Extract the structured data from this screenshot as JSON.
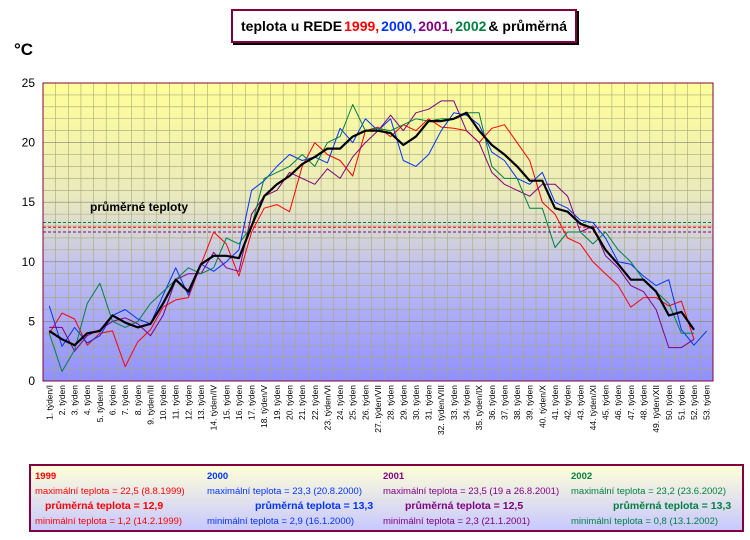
{
  "title": {
    "prefix": "teplota u REDE",
    "y1999": "1999,",
    "y2000": "2000,",
    "y2001": "2001,",
    "y2002": "2002",
    "suffix": "& průměrná"
  },
  "colors": {
    "y1999": "#ff0000",
    "y2000": "#0033ff",
    "y2001": "#800080",
    "y2002": "#008040",
    "average": "#000000",
    "border": "#800040"
  },
  "chart_data": {
    "type": "line",
    "title": "teplota u REDE 1999, 2000, 2001, 2002 & průměrná",
    "ylabel": "°C",
    "ylim": [
      0,
      25
    ],
    "yticks": [
      0,
      5,
      10,
      15,
      20,
      25
    ],
    "grid": true,
    "x": [
      "1. týden/I",
      "2. týden",
      "3. týden",
      "4. týden",
      "5. týden/II",
      "6. týden",
      "7. týden",
      "8. týden",
      "9. týden/III",
      "10. týden",
      "11. týden",
      "12. týden",
      "13. týden",
      "14. týden/IV",
      "15. týden",
      "16. týden",
      "17. týden",
      "18. týden/V",
      "19. týden",
      "20. týden",
      "21. týden",
      "22. týden",
      "23. týden/VI",
      "24. týden",
      "25. týden",
      "26. týden",
      "27. týden/VII",
      "28. týden",
      "29. týden",
      "30. týden",
      "31. týden",
      "32. týden/VIII",
      "33. týden",
      "34. týden",
      "35. týden/IX",
      "36. týden",
      "37. týden",
      "38. týden",
      "39. týden",
      "40. týden/X",
      "41. týden",
      "42. týden",
      "43. týden",
      "44. týden/XI",
      "45. týden",
      "46. týden",
      "47. týden",
      "48. týden",
      "49. týden/XII",
      "50. týden",
      "51. týden",
      "52. týden",
      "53. týden"
    ],
    "annotation": "průměrné teploty",
    "average_lines": [
      12.9,
      13.3,
      12.5,
      13.3
    ],
    "series": [
      {
        "key": "y1999",
        "values": [
          4.0,
          5.7,
          5.2,
          3.0,
          4.0,
          4.2,
          1.2,
          3.3,
          4.3,
          6.2,
          6.8,
          7.0,
          9.8,
          12.5,
          11.5,
          8.8,
          12.5,
          14.5,
          14.8,
          14.2,
          18.0,
          20.0,
          19.0,
          18.5,
          17.2,
          21.0,
          21.3,
          20.5,
          21.5,
          21.0,
          22.0,
          21.3,
          21.2,
          21.0,
          20.0,
          21.2,
          21.5,
          20.0,
          18.5,
          15.0,
          14.0,
          12.0,
          11.5,
          10.0,
          9.0,
          8.0,
          6.2,
          7.0,
          7.0,
          6.3,
          6.7,
          3.5,
          null
        ]
      },
      {
        "key": "y2000",
        "values": [
          6.3,
          2.9,
          4.5,
          3.2,
          3.8,
          5.5,
          6.0,
          5.2,
          4.8,
          7.2,
          9.5,
          7.2,
          9.8,
          9.2,
          10.0,
          11.0,
          16.0,
          16.8,
          18.0,
          19.0,
          18.5,
          18.8,
          18.3,
          21.2,
          20.0,
          22.0,
          21.0,
          22.0,
          18.5,
          18.0,
          19.0,
          21.0,
          22.5,
          22.3,
          21.5,
          19.2,
          18.5,
          17.0,
          16.5,
          17.5,
          15.0,
          14.5,
          13.5,
          13.3,
          12.0,
          10.0,
          9.8,
          8.8,
          8.0,
          8.5,
          4.3,
          3.0,
          4.2
        ]
      },
      {
        "key": "y2001",
        "values": [
          4.5,
          4.5,
          2.5,
          3.8,
          4.3,
          5.0,
          5.3,
          4.8,
          3.8,
          5.5,
          8.5,
          9.0,
          9.0,
          10.8,
          9.5,
          9.2,
          14.0,
          15.5,
          16.0,
          17.5,
          17.0,
          16.5,
          17.8,
          17.0,
          18.8,
          20.0,
          21.0,
          22.3,
          21.0,
          22.5,
          22.8,
          23.5,
          23.5,
          21.0,
          20.0,
          17.5,
          16.5,
          16.0,
          15.5,
          16.5,
          16.5,
          15.5,
          12.5,
          13.0,
          10.5,
          9.5,
          8.0,
          7.5,
          6.0,
          2.8,
          2.8,
          3.5,
          null
        ]
      },
      {
        "key": "y2002",
        "values": [
          4.0,
          0.8,
          2.6,
          6.5,
          8.2,
          5.0,
          4.5,
          5.0,
          6.5,
          7.5,
          8.5,
          9.5,
          9.0,
          9.5,
          12.0,
          11.5,
          13.0,
          17.0,
          17.5,
          18.0,
          19.0,
          18.0,
          20.0,
          20.5,
          23.2,
          21.0,
          21.2,
          21.0,
          21.5,
          22.0,
          21.8,
          22.0,
          22.0,
          22.5,
          22.5,
          18.0,
          17.0,
          17.0,
          14.5,
          14.5,
          11.2,
          12.5,
          12.5,
          11.5,
          12.5,
          11.0,
          10.0,
          8.5,
          7.5,
          6.5,
          4.0,
          4.0,
          null
        ]
      },
      {
        "key": "average",
        "values": [
          4.2,
          3.5,
          3.0,
          4.0,
          4.2,
          5.5,
          4.9,
          4.5,
          4.8,
          6.5,
          8.5,
          7.5,
          9.8,
          10.5,
          10.5,
          10.3,
          13.0,
          15.5,
          16.5,
          17.2,
          18.2,
          18.8,
          19.5,
          19.5,
          20.5,
          21.0,
          21.0,
          20.8,
          19.8,
          20.5,
          21.8,
          21.8,
          22.0,
          22.5,
          21.0,
          19.8,
          19.0,
          18.0,
          16.8,
          16.8,
          14.5,
          14.2,
          13.2,
          12.8,
          11.0,
          9.8,
          8.5,
          8.5,
          7.5,
          5.5,
          5.8,
          4.3,
          null
        ]
      }
    ]
  },
  "legend": {
    "y1999": {
      "year": "1999",
      "max": "maximální teplota = 22,5 (8.8.1999)",
      "avg": "průměrná teplota = 12,9",
      "min": "minimální teplota =  1,2 (14.2.1999)"
    },
    "y2000": {
      "year": "2000",
      "max": "maximální teplota = 23,3 (20.8.2000)",
      "avg": "průměrná teplota = 13,3",
      "min": "minimální teplota =  2,9 (16.1.2000)"
    },
    "y2001": {
      "year": "2001",
      "max": "maximální teplota = 23,5 (19 a 26.8.2001)",
      "avg": "průměrná teplota = 12,5",
      "min": "minimální teplota =  2,3 (21.1.2001)"
    },
    "y2002": {
      "year": "2002",
      "max": "maximální teplota = 23,2 (23.6.2002)",
      "avg": "průměrná teplota = 13,3",
      "min": "minimální teplota =  0,8 (13.1.2002)"
    }
  }
}
